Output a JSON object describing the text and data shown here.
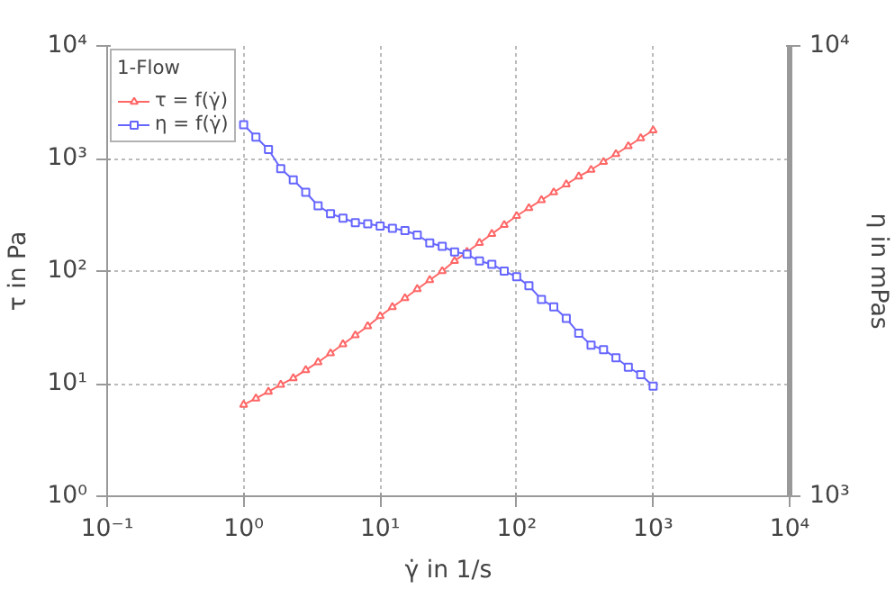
{
  "chart_data": {
    "type": "line",
    "xlabel": "γ̇ in 1/s",
    "ylabel": "τ in Pa",
    "y2label": "η in mPas",
    "legend_title": "1-Flow",
    "legend": "top left",
    "log": "xy",
    "grid": true,
    "line_style": "solid",
    "x": [
      1,
      1.23,
      1.52,
      1.87,
      2.31,
      2.85,
      3.51,
      4.33,
      5.34,
      6.58,
      8.11,
      10,
      12.3,
      15.2,
      18.7,
      23.1,
      28.5,
      35.1,
      43.3,
      53.4,
      65.8,
      81.1,
      100,
      123,
      152,
      187,
      231,
      285,
      351,
      433,
      534,
      658,
      811,
      1000
    ],
    "xlim": [
      0.1,
      10000
    ],
    "xticks": [
      {
        "value": 0.1,
        "label": "10⁻¹"
      },
      {
        "value": 1,
        "label": "10⁰"
      },
      {
        "value": 10,
        "label": "10¹"
      },
      {
        "value": 100,
        "label": "10²"
      },
      {
        "value": 1000,
        "label": "10³"
      },
      {
        "value": 10000,
        "label": "10⁴"
      }
    ],
    "ylim": [
      1,
      10000
    ],
    "yticks": [
      {
        "value": 1,
        "label": "10⁰"
      },
      {
        "value": 10,
        "label": "10¹"
      },
      {
        "value": 100,
        "label": "10²"
      },
      {
        "value": 1000,
        "label": "10³"
      },
      {
        "value": 10000,
        "label": "10⁴"
      }
    ],
    "y2lim": [
      1000,
      10000
    ],
    "y2ticks": [
      {
        "value": 1000,
        "label": "10³"
      },
      {
        "value": 10000,
        "label": "10⁴"
      }
    ],
    "series": [
      {
        "name": "τ = f(γ̇)",
        "color": "#ff6666",
        "marker": "triangle",
        "values": [
          6.5,
          7.4,
          8.5,
          9.8,
          11.2,
          13.2,
          15.5,
          18.6,
          22.4,
          26.9,
          32.4,
          39.8,
          47.9,
          57.5,
          69.2,
          83.2,
          100,
          123,
          148,
          178,
          214,
          257,
          309,
          363,
          427,
          501,
          589,
          692,
          794,
          933,
          1096,
          1288,
          1514,
          1778
        ]
      },
      {
        "name": "η = f(γ̇)",
        "color": "#6666ff",
        "marker": "square",
        "values": [
          1995,
          1549,
          1202,
          813,
          646,
          501,
          380,
          324,
          295,
          269,
          263,
          251,
          240,
          229,
          209,
          178,
          166,
          148,
          141,
          123,
          115,
          100,
          89,
          74,
          56,
          48,
          38,
          28,
          22,
          20,
          17,
          14,
          12,
          9.5
        ]
      }
    ]
  }
}
